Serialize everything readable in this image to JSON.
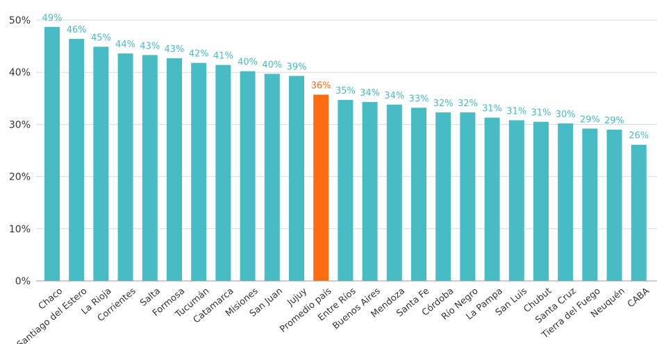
{
  "chart_data": {
    "type": "bar",
    "title": "",
    "xlabel": "",
    "ylabel": "",
    "ylim": [
      0,
      50
    ],
    "y_ticks": [
      "0%",
      "10%",
      "20%",
      "30%",
      "40%",
      "50%"
    ],
    "grid": true,
    "categories": [
      "Chaco",
      "Santiago del Estero",
      "La Rioja",
      "Corrientes",
      "Salta",
      "Formosa",
      "Tucumán",
      "Catamarca",
      "Misiones",
      "San Juan",
      "Jujuy",
      "Promedio país",
      "Entre Ríos",
      "Buenos Aires",
      "Mendoza",
      "Santa Fe",
      "Córdoba",
      "Río Negro",
      "La Pampa",
      "San Luis",
      "Chubut",
      "Santa Cruz",
      "Tierra del Fuego",
      "Neuquén",
      "CABA"
    ],
    "values": [
      48.7,
      46.4,
      44.9,
      43.6,
      43.3,
      42.7,
      41.8,
      41.4,
      40.2,
      39.7,
      39.3,
      35.7,
      34.7,
      34.3,
      33.8,
      33.2,
      32.3,
      32.3,
      31.3,
      30.8,
      30.5,
      30.2,
      29.2,
      29.0,
      26.1
    ],
    "data_labels": [
      "49%",
      "46%",
      "45%",
      "44%",
      "43%",
      "43%",
      "42%",
      "41%",
      "40%",
      "40%",
      "39%",
      "36%",
      "35%",
      "34%",
      "34%",
      "33%",
      "32%",
      "32%",
      "31%",
      "31%",
      "31%",
      "30%",
      "29%",
      "29%",
      "26%"
    ],
    "highlight_category": "Promedio país",
    "colors": {
      "bar": "#48BCC4",
      "highlight_bar": "#FF6D10",
      "label": "#48BCC4",
      "highlight_label": "#FF6D10",
      "grid": "#d9d9d9",
      "axis": "#999999",
      "tick_text": "#333333"
    }
  }
}
